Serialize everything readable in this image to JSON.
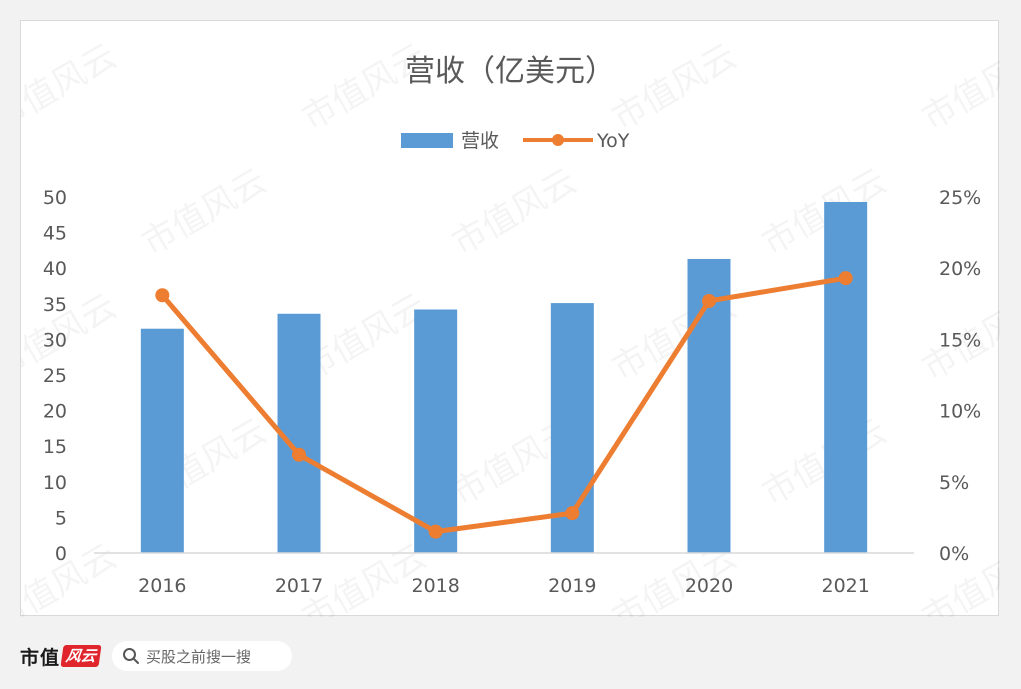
{
  "chart_data": {
    "type": "bar+line",
    "title": "营收（亿美元）",
    "categories": [
      "2016",
      "2017",
      "2018",
      "2019",
      "2020",
      "2021"
    ],
    "series": [
      {
        "name": "营收",
        "type": "bar",
        "axis": "left",
        "color": "#5b9bd5",
        "values": [
          31.5,
          33.6,
          34.2,
          35.1,
          41.3,
          49.3
        ]
      },
      {
        "name": "YoY",
        "type": "line",
        "axis": "right",
        "color": "#ed7d31",
        "values": [
          18.1,
          6.9,
          1.5,
          2.8,
          17.7,
          19.3
        ]
      }
    ],
    "y_left": {
      "range": [
        0,
        50
      ],
      "ticks": [
        "0",
        "5",
        "10",
        "15",
        "20",
        "25",
        "30",
        "35",
        "40",
        "45",
        "50"
      ]
    },
    "y_right": {
      "range": [
        0,
        25
      ],
      "ticks": [
        "0%",
        "5%",
        "10%",
        "15%",
        "20%",
        "25%"
      ]
    },
    "legend_position": "top-center",
    "grid": false
  },
  "watermark": "市值风云",
  "footer": {
    "brand": "市值",
    "brand_mark": "风云",
    "search_placeholder": "买股之前搜一搜"
  },
  "colors": {
    "axis_text": "#595959",
    "title_text": "#595959",
    "axis_line": "#d9d9d9"
  }
}
